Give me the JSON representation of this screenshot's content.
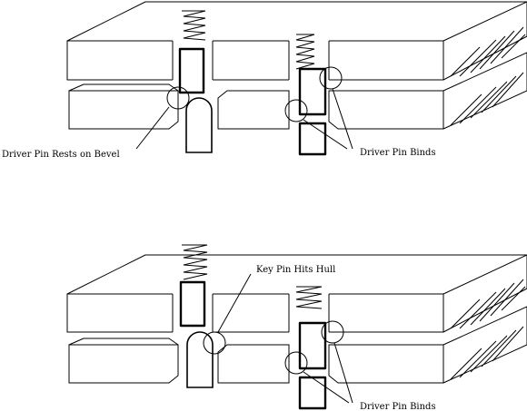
{
  "diagram": {
    "labels": {
      "driver_rests_on_bevel": "Driver Pin Rests on Bevel",
      "driver_binds_top": "Driver Pin Binds",
      "key_pin_hits_hull": "Key Pin Hits Hull",
      "driver_binds_bottom": "Driver Pin Binds"
    }
  }
}
